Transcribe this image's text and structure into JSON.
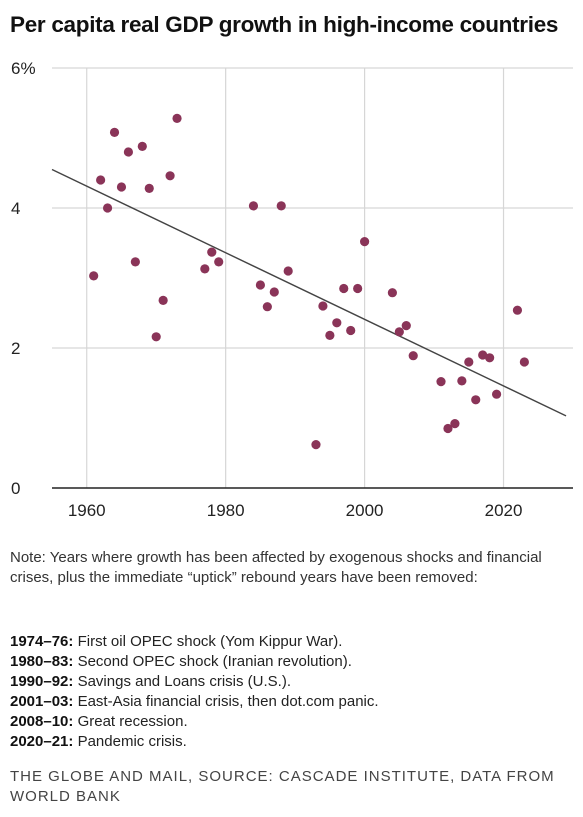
{
  "title": "Per capita real GDP growth in high-income countries",
  "chart_data": {
    "type": "scatter",
    "title": "Per capita real GDP growth in high-income countries",
    "xlabel": "",
    "ylabel": "",
    "xlim": [
      1955,
      2030
    ],
    "ylim": [
      0,
      6
    ],
    "x_ticks": [
      "1960",
      "1980",
      "2000",
      "2020"
    ],
    "x_tick_values": [
      1960,
      1980,
      2000,
      2020
    ],
    "y_ticks": [
      "0",
      "2",
      "4",
      "6%"
    ],
    "y_tick_values": [
      0,
      2,
      4,
      6
    ],
    "grid": "vertical and horizontal",
    "point_color": "#8a3458",
    "trendline": {
      "color": "#444444",
      "start": [
        1955,
        4.55
      ],
      "end": [
        2029,
        1.03
      ]
    },
    "points": [
      {
        "x": 1961,
        "y": 3.03
      },
      {
        "x": 1962,
        "y": 4.4
      },
      {
        "x": 1963,
        "y": 4.0
      },
      {
        "x": 1964,
        "y": 5.08
      },
      {
        "x": 1965,
        "y": 4.3
      },
      {
        "x": 1966,
        "y": 4.8
      },
      {
        "x": 1967,
        "y": 3.23
      },
      {
        "x": 1968,
        "y": 4.88
      },
      {
        "x": 1969,
        "y": 4.28
      },
      {
        "x": 1970,
        "y": 2.16
      },
      {
        "x": 1971,
        "y": 2.68
      },
      {
        "x": 1972,
        "y": 4.46
      },
      {
        "x": 1973,
        "y": 5.28
      },
      {
        "x": 1977,
        "y": 3.13
      },
      {
        "x": 1978,
        "y": 3.37
      },
      {
        "x": 1979,
        "y": 3.23
      },
      {
        "x": 1984,
        "y": 4.03
      },
      {
        "x": 1985,
        "y": 2.9
      },
      {
        "x": 1986,
        "y": 2.59
      },
      {
        "x": 1987,
        "y": 2.8
      },
      {
        "x": 1988,
        "y": 4.03
      },
      {
        "x": 1989,
        "y": 3.1
      },
      {
        "x": 1993,
        "y": 0.62
      },
      {
        "x": 1994,
        "y": 2.6
      },
      {
        "x": 1995,
        "y": 2.18
      },
      {
        "x": 1996,
        "y": 2.36
      },
      {
        "x": 1997,
        "y": 2.85
      },
      {
        "x": 1998,
        "y": 2.25
      },
      {
        "x": 1999,
        "y": 2.85
      },
      {
        "x": 2000,
        "y": 3.52
      },
      {
        "x": 2004,
        "y": 2.79
      },
      {
        "x": 2005,
        "y": 2.23
      },
      {
        "x": 2006,
        "y": 2.32
      },
      {
        "x": 2007,
        "y": 1.89
      },
      {
        "x": 2011,
        "y": 1.52
      },
      {
        "x": 2012,
        "y": 0.85
      },
      {
        "x": 2013,
        "y": 0.92
      },
      {
        "x": 2014,
        "y": 1.53
      },
      {
        "x": 2015,
        "y": 1.8
      },
      {
        "x": 2016,
        "y": 1.26
      },
      {
        "x": 2017,
        "y": 1.9
      },
      {
        "x": 2018,
        "y": 1.86
      },
      {
        "x": 2019,
        "y": 1.34
      },
      {
        "x": 2022,
        "y": 2.54
      },
      {
        "x": 2023,
        "y": 1.8
      }
    ]
  },
  "note": "Note: Years where growth has been affected by exogenous shocks and financial crises, plus the immediate “uptick” rebound years have been removed:",
  "crises": [
    {
      "years": "1974–76:",
      "desc": " First oil OPEC shock (Yom Kippur War)."
    },
    {
      "years": "1980–83:",
      "desc": " Second OPEC shock (Iranian revolution)."
    },
    {
      "years": "1990–92:",
      "desc": " Savings and Loans crisis (U.S.)."
    },
    {
      "years": "2001–03:",
      "desc": " East-Asia financial crisis, then dot.com panic."
    },
    {
      "years": "2008–10:",
      "desc": " Great recession."
    },
    {
      "years": "2020–21:",
      "desc": " Pandemic crisis."
    }
  ],
  "source": "THE GLOBE AND MAIL, SOURCE: CASCADE INSTITUTE, DATA FROM WORLD BANK"
}
